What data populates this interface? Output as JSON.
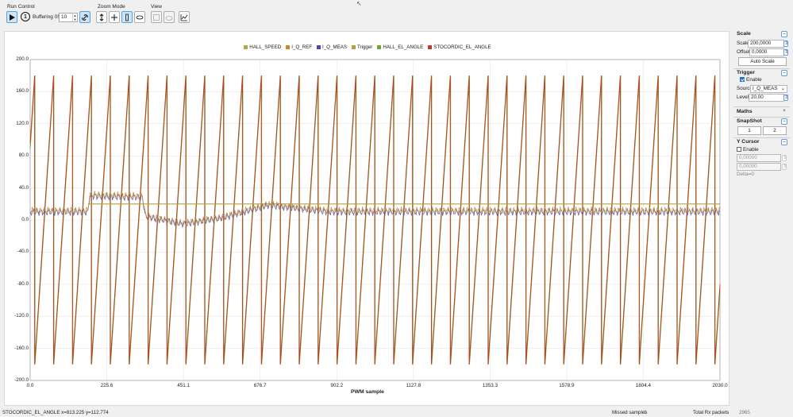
{
  "toolbar": {
    "run_control_label": "Run Control",
    "zoom_mode_label": "Zoom Mode",
    "view_label": "View",
    "buffer_number": "1",
    "buffering_label": "Buffering 05/",
    "buffer_count": "10"
  },
  "legend": [
    {
      "name": "HALL_SPEED",
      "color": "#b8a24a"
    },
    {
      "name": "I_Q_REF",
      "color": "#c48a2a"
    },
    {
      "name": "I_Q_MEAS",
      "color": "#4a4aa8"
    },
    {
      "name": "Trigger",
      "color": "#b0a040"
    },
    {
      "name": "HALL_EL_ANGLE",
      "color": "#6aaa2a"
    },
    {
      "name": "STOCORDIC_EL_ANGLE",
      "color": "#c0392b"
    }
  ],
  "chart_data": {
    "type": "line",
    "xlabel": "PWM sample",
    "xlim": [
      0,
      2030
    ],
    "ylim": [
      -200,
      200
    ],
    "x_ticks": [
      "0.0",
      "225.6",
      "451.1",
      "676.7",
      "902.2",
      "1127.8",
      "1353.3",
      "1578.9",
      "1804.4",
      "2030.0"
    ],
    "y_ticks": [
      "200.0",
      "160.0",
      "120.0",
      "80.0",
      "40.0",
      "0.0",
      "-40.0",
      "-80.0",
      "-120.0",
      "-160.0",
      "-200.0"
    ],
    "series": [
      {
        "name": "HALL_EL_ANGLE",
        "shape": "sawtooth",
        "period_samples": 55.6,
        "min": -180,
        "max": 180,
        "x_start": 0,
        "phase_offset": 14
      },
      {
        "name": "STOCORDIC_EL_ANGLE",
        "shape": "sawtooth",
        "period_samples": 55.6,
        "min": -180,
        "max": 180,
        "x_start": 0,
        "phase_offset": 13
      },
      {
        "name": "Trigger",
        "shape": "constant",
        "value": 20,
        "x_start": 170,
        "x_end": 2030
      },
      {
        "name": "I_Q_MEAS",
        "shape": "noisy",
        "baseline": 10,
        "segments": [
          {
            "x": 0,
            "y": 10
          },
          {
            "x": 170,
            "y": 10
          },
          {
            "x": 175,
            "y": 30
          },
          {
            "x": 330,
            "y": 28
          },
          {
            "x": 340,
            "y": 4
          },
          {
            "x": 450,
            "y": -5
          },
          {
            "x": 560,
            "y": 2
          },
          {
            "x": 700,
            "y": 18
          },
          {
            "x": 770,
            "y": 15
          },
          {
            "x": 880,
            "y": 10
          },
          {
            "x": 2030,
            "y": 10
          }
        ]
      },
      {
        "name": "I_Q_REF",
        "shape": "noisy",
        "baseline": 11,
        "segments": [
          {
            "x": 0,
            "y": 12
          },
          {
            "x": 170,
            "y": 12
          },
          {
            "x": 175,
            "y": 32
          },
          {
            "x": 330,
            "y": 30
          },
          {
            "x": 340,
            "y": 5
          },
          {
            "x": 450,
            "y": -4
          },
          {
            "x": 560,
            "y": 3
          },
          {
            "x": 700,
            "y": 20
          },
          {
            "x": 770,
            "y": 16
          },
          {
            "x": 880,
            "y": 12
          },
          {
            "x": 2030,
            "y": 12
          }
        ]
      }
    ]
  },
  "panel": {
    "scale": {
      "title": "Scale",
      "scale_label": "Scale",
      "scale_value": "200,0000",
      "offset_label": "Offset",
      "offset_value": "0,0000",
      "auto_scale_label": "Auto Scale"
    },
    "trigger": {
      "title": "Trigger",
      "enable_label": "Enable",
      "enabled": true,
      "source_label": "Source",
      "source_value": "I_Q_MEAS",
      "level_label": "Level",
      "level_value": "20,00"
    },
    "maths": {
      "title": "Maths"
    },
    "snapshot": {
      "title": "SnapShot",
      "btn1": "1",
      "btn2": "2"
    },
    "ycursor": {
      "title": "Y Cursor",
      "enable_label": "Enable",
      "enabled": false,
      "value1": "0,00000",
      "value2": "0,00000",
      "delta": "Delta=0"
    }
  },
  "status": {
    "cursor_readout": "STOCORDIC_EL_ANGLE x=813.225 y=112.774",
    "missed_label": "Missed samples",
    "missed_value": "0",
    "rx_label": "Total Rx packets",
    "rx_value": "2965"
  }
}
